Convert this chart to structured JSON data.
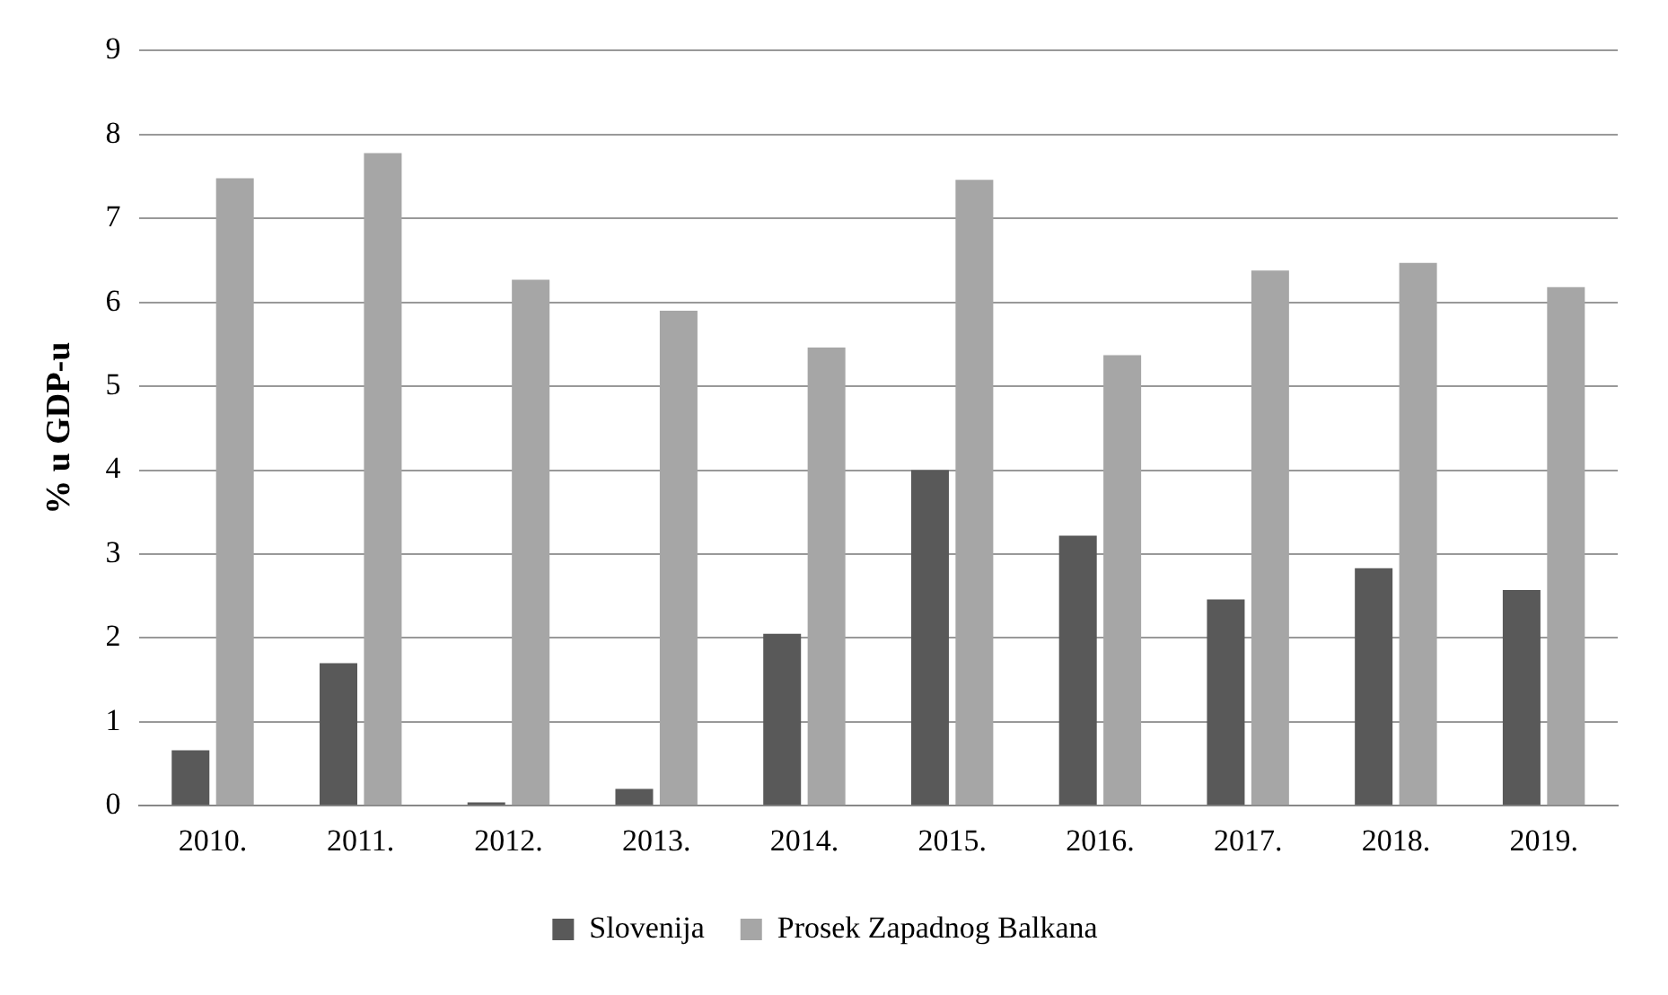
{
  "chart_data": {
    "type": "bar",
    "ylabel": "% u GDP-u",
    "categories": [
      "2010.",
      "2011.",
      "2012.",
      "2013.",
      "2014.",
      "2015.",
      "2016.",
      "2017.",
      "2018.",
      "2019."
    ],
    "series": [
      {
        "name": "Slovenija",
        "color": "#595959",
        "values": [
          0.66,
          1.7,
          0.04,
          0.2,
          2.05,
          4.0,
          3.22,
          2.46,
          2.83,
          2.57
        ]
      },
      {
        "name": "Prosek Zapadnog Balkana",
        "color": "#a6a6a6",
        "values": [
          7.48,
          7.78,
          6.27,
          5.9,
          5.46,
          7.46,
          5.37,
          6.38,
          6.47,
          6.18
        ]
      }
    ],
    "ylim": [
      0,
      9
    ],
    "yticks": [
      0,
      1,
      2,
      3,
      4,
      5,
      6,
      7,
      8,
      9
    ],
    "grid": "y",
    "legend": "bottom"
  }
}
